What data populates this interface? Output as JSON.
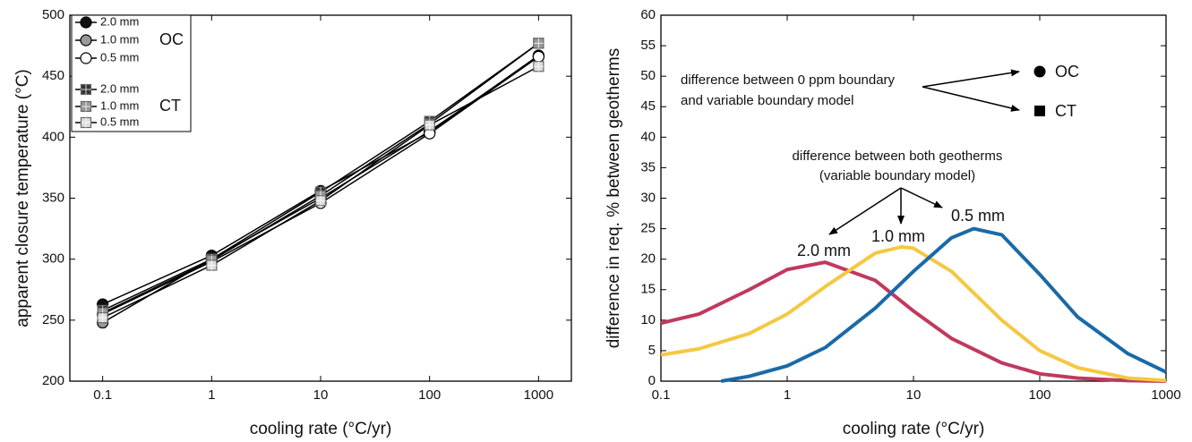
{
  "chart_data": [
    {
      "type": "line",
      "xscale": "log",
      "xlabel": "cooling rate (°C/yr)",
      "ylabel": "apparent closure temperature (°C)",
      "x": [
        0.1,
        1,
        10,
        100,
        1000
      ],
      "xlim": [
        0.05,
        2000
      ],
      "xticks": [
        0.1,
        1,
        10,
        100,
        1000
      ],
      "ylim": [
        200,
        500
      ],
      "yticks": [
        200,
        250,
        300,
        350,
        400,
        450,
        500
      ],
      "line_color": "#000000",
      "legend_groups": [
        "OC",
        "CT"
      ],
      "series": [
        {
          "name": "2.0 mm",
          "group": 0,
          "marker": "circle",
          "color": "#111111",
          "values": [
            263,
            303,
            356,
            404,
            467
          ]
        },
        {
          "name": "1.0 mm",
          "group": 0,
          "marker": "circle",
          "color": "#999999",
          "values": [
            248,
            300,
            350,
            405,
            466
          ]
        },
        {
          "name": "0.5 mm",
          "group": 0,
          "marker": "circle",
          "color": "#ffffff",
          "values": [
            255,
            298,
            346,
            403,
            466
          ]
        },
        {
          "name": "2.0 mm",
          "group": 1,
          "marker": "square",
          "color": "#333333",
          "values": [
            258,
            300,
            355,
            413,
            477
          ]
        },
        {
          "name": "1.0 mm",
          "group": 1,
          "marker": "square",
          "color": "#999999",
          "values": [
            256,
            299,
            352,
            411,
            477
          ]
        },
        {
          "name": "0.5 mm",
          "group": 1,
          "marker": "square",
          "color": "#dddddd",
          "values": [
            252,
            295,
            348,
            410,
            458
          ]
        }
      ]
    },
    {
      "type": "line",
      "xscale": "log",
      "xlabel": "cooling rate (°C/yr)",
      "ylabel": "difference in req. % between geotherms",
      "xlim": [
        0.1,
        1000
      ],
      "xticks": [
        0.1,
        1,
        10,
        100,
        1000
      ],
      "ylim": [
        0,
        60
      ],
      "yticks": [
        0,
        5,
        10,
        15,
        20,
        25,
        30,
        35,
        40,
        45,
        50,
        55,
        60
      ],
      "annotations": [
        "difference between 0 ppm boundary",
        "and variable boundary model",
        "difference between both geotherms",
        "(variable boundary model)"
      ],
      "legend": [
        {
          "marker": "circle",
          "label": "OC"
        },
        {
          "marker": "square",
          "label": "CT"
        }
      ],
      "series": [
        {
          "name": "2.0 mm",
          "color": "#c0395e",
          "x": [
            0.1,
            0.2,
            0.5,
            1,
            2,
            5,
            10,
            20,
            50,
            100,
            200,
            500,
            1000
          ],
          "values": [
            9.5,
            11,
            15,
            18.3,
            19.5,
            16.5,
            11.5,
            7,
            3,
            1.2,
            0.5,
            0.1,
            0
          ]
        },
        {
          "name": "1.0 mm",
          "color": "#f5c842",
          "x": [
            0.1,
            0.2,
            0.5,
            1,
            2,
            5,
            8,
            10,
            20,
            50,
            100,
            200,
            500,
            1000
          ],
          "values": [
            4.3,
            5.3,
            7.8,
            11,
            15.5,
            21,
            22,
            21.8,
            18,
            10,
            5,
            2.2,
            0.5,
            0.1
          ]
        },
        {
          "name": "0.5 mm",
          "color": "#1a6aa8",
          "x": [
            0.3,
            0.5,
            1,
            2,
            5,
            10,
            20,
            30,
            50,
            100,
            200,
            500,
            1000
          ],
          "values": [
            0,
            0.8,
            2.5,
            5.5,
            12,
            18,
            23.5,
            25,
            24,
            17.5,
            10.5,
            4.5,
            1.5
          ]
        }
      ]
    }
  ]
}
